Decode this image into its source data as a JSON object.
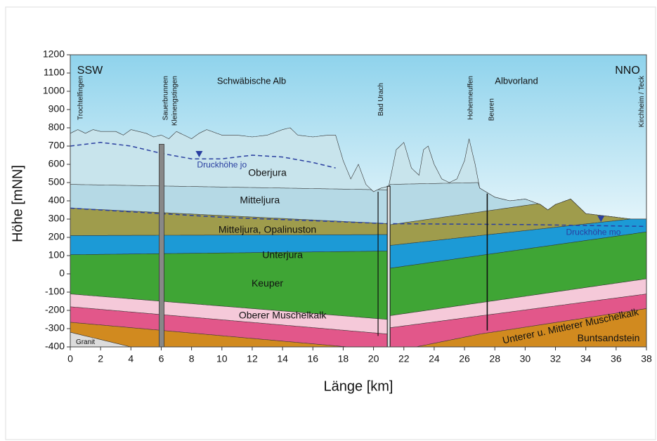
{
  "axes": {
    "x_label": "Länge  [km]",
    "y_label": "Höhe  [mNN]",
    "xticks": [
      0,
      2,
      4,
      6,
      8,
      10,
      12,
      14,
      16,
      18,
      20,
      22,
      24,
      26,
      28,
      30,
      32,
      34,
      36,
      38
    ],
    "yticks": [
      -400,
      -300,
      -200,
      -100,
      0,
      100,
      200,
      300,
      400,
      500,
      600,
      700,
      800,
      900,
      1000,
      1100,
      1200
    ]
  },
  "directions": {
    "left": "SSW",
    "right": "NNO"
  },
  "regions": [
    "Schwäbische Alb",
    "Albvorland"
  ],
  "locations": [
    "Trochtelfingen",
    "Sauerbrunnen",
    "Kleinengstingen",
    "Bad Urach",
    "Hohenneuffen",
    "Beuren",
    "Kirchheim / Teck"
  ],
  "layers": [
    "Oberjura",
    "Mitteljura",
    "Mitteljura, Opalinuston",
    "Unterjura",
    "Keuper",
    "Oberer Muschelkalk",
    "Unterer u. Mittlerer Muschelkalk",
    "Buntsandstein",
    "Granit"
  ],
  "annotations": [
    "Druckhöhe jo",
    "Druckhöhe mo"
  ]
}
